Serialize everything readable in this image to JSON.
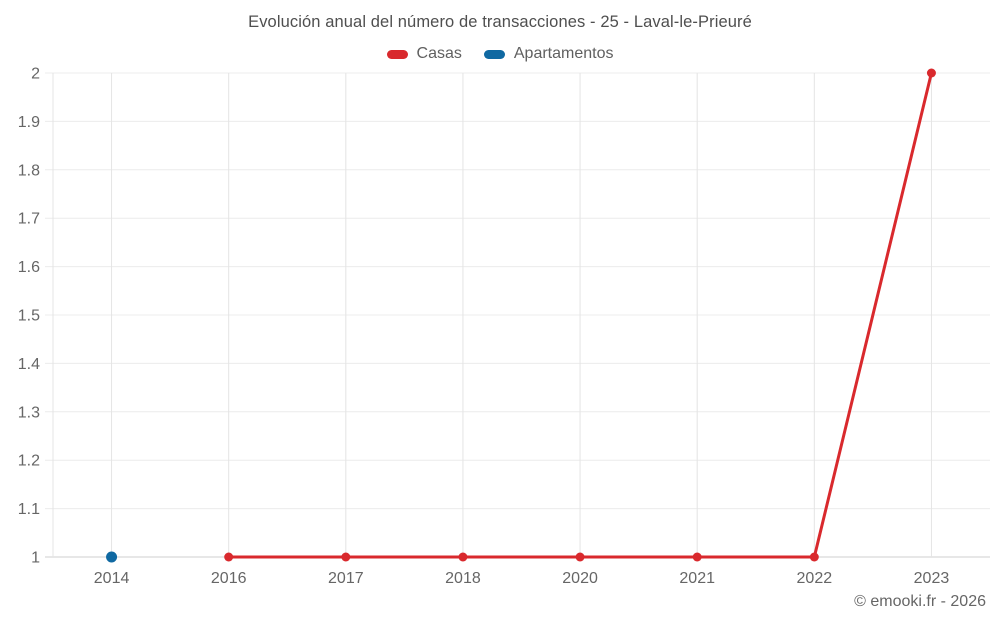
{
  "footer": {
    "copyright": "© emooki.fr - 2026"
  },
  "chart_data": {
    "type": "line",
    "title": "Evolución anual del número de transacciones - 25 - Laval-le-Prieuré",
    "categories": [
      "2014",
      "2016",
      "2017",
      "2018",
      "2020",
      "2021",
      "2022",
      "2023"
    ],
    "series": [
      {
        "name": "Casas",
        "color": "#d9292d",
        "marker_radius": 4.5,
        "values": [
          null,
          1,
          1,
          1,
          1,
          1,
          1,
          2
        ]
      },
      {
        "name": "Apartamentos",
        "color": "#1069a2",
        "marker_radius": 5.5,
        "values": [
          1,
          null,
          null,
          null,
          null,
          null,
          null,
          null
        ]
      }
    ],
    "ylim": [
      1,
      2
    ],
    "yticks": [
      1,
      1.1,
      1.2,
      1.3,
      1.4,
      1.5,
      1.6,
      1.7,
      1.8,
      1.9,
      2
    ],
    "xlabel": "",
    "ylabel": "",
    "grid": true,
    "legend_position": "top",
    "grid_color": "#ececec",
    "axis_line_color": "#cfcfcf",
    "tick_label_color": "#666666"
  }
}
